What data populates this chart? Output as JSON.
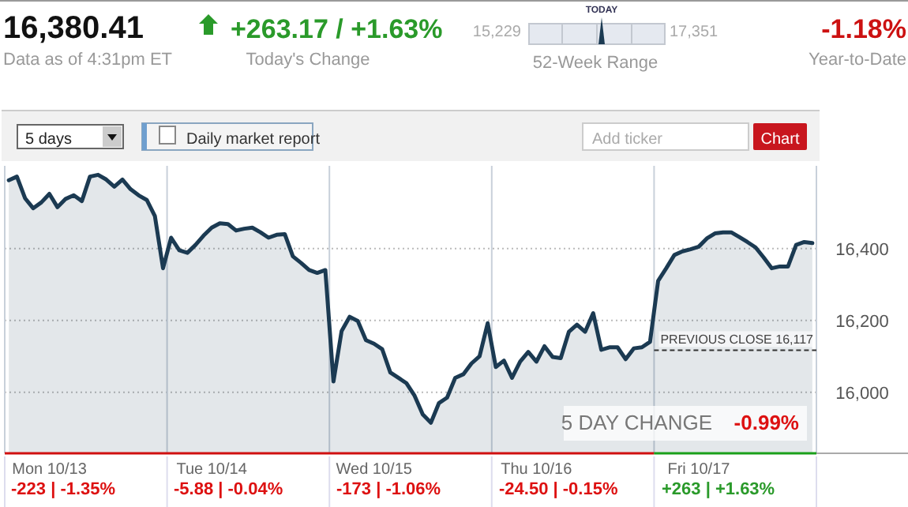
{
  "chart_data": {
    "type": "area",
    "title": "16,380.41",
    "categories": [
      null,
      null,
      null,
      null,
      null,
      "Mon 10/13",
      null,
      null,
      null,
      null,
      null,
      null,
      null,
      null,
      null,
      null,
      null,
      null,
      null,
      null,
      null,
      null,
      null,
      null,
      null,
      "Tue 10/14",
      null,
      null,
      null,
      null,
      null,
      null,
      null,
      null,
      null,
      null,
      null,
      null,
      null,
      null,
      null,
      null,
      null,
      null,
      null,
      "Wed 10/15",
      null,
      null,
      null,
      null,
      null,
      null,
      null,
      null,
      null,
      null,
      null,
      null,
      null,
      null,
      null,
      null,
      null,
      null,
      null,
      "Thu 10/16",
      null,
      null,
      null,
      null,
      null,
      null,
      null,
      null,
      null,
      null,
      null,
      null,
      null,
      null,
      null,
      null,
      null,
      null,
      null,
      "Fri 10/17",
      null,
      null,
      null,
      null,
      null,
      null,
      null,
      null,
      null,
      null,
      null,
      null,
      null,
      null
    ],
    "series": [
      {
        "color": "#1b3a52",
        "values": [
          16590,
          16600,
          16540,
          16512,
          16528,
          16552,
          16515,
          16538,
          16548,
          16532,
          16600,
          16605,
          16592,
          16572,
          16592,
          16565,
          16548,
          16535,
          16490,
          16345,
          16430,
          16395,
          16388,
          16410,
          16436,
          16458,
          16470,
          16468,
          16450,
          16455,
          16458,
          16445,
          16430,
          16438,
          16440,
          16378,
          16360,
          16340,
          16332,
          16340,
          16030,
          16170,
          16210,
          16198,
          16145,
          16135,
          16120,
          16055,
          16040,
          16025,
          15990,
          15938,
          15915,
          15970,
          15985,
          16040,
          16050,
          16080,
          16100,
          16192,
          16070,
          16088,
          16040,
          16085,
          16112,
          16085,
          16128,
          16098,
          16095,
          16168,
          16188,
          16168,
          16220,
          16118,
          16125,
          16125,
          16092,
          16122,
          16125,
          16140,
          16310,
          16345,
          16382,
          16392,
          16398,
          16405,
          16428,
          16442,
          16445,
          16445,
          16432,
          16418,
          16403,
          16375,
          16345,
          16350,
          16350,
          16410,
          16418,
          16415
        ]
      }
    ],
    "ylim": [
      15830,
      16630
    ],
    "yticks": [
      {
        "value": 16000,
        "label": "16,000"
      },
      {
        "value": 16200,
        "label": "16,200"
      },
      {
        "value": 16400,
        "label": "16,400"
      }
    ],
    "grid": true,
    "ref_lines": [
      {
        "axis": "y",
        "value": 16117,
        "label": "PREVIOUS CLOSE 16,117",
        "color": "#333333",
        "line_style": "dashed"
      }
    ],
    "annotations": [
      "Data as of 4:31pm ET",
      "+263.17 / +1.63%",
      "Today's Change",
      "TODAY",
      "15,229",
      "17,351",
      "52-Week Range",
      "-1.18%",
      "Year-to-Date",
      "5 days",
      "Daily market report",
      "Add ticker",
      "Chart",
      "5 DAY CHANGE",
      "-0.99%",
      "-223 | -1.35%",
      "-5.88 | -0.04%",
      "-173 | -1.06%",
      "-24.50 | -0.15%",
      "+263 | +1.63%"
    ]
  }
}
